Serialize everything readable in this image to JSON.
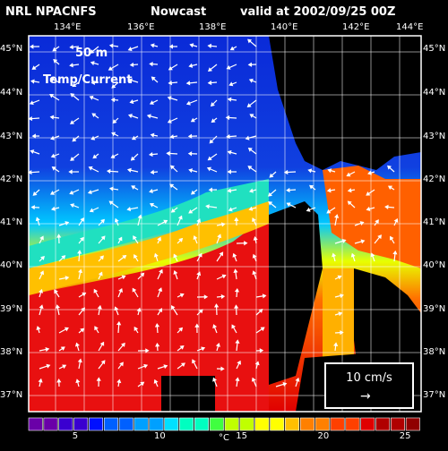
{
  "header": {
    "source": "NRL NPACNFS",
    "product": "Nowcast",
    "valid": "valid at 2002/09/25 00Z"
  },
  "overlay": {
    "depth": "50 m",
    "field": "Temp/Current"
  },
  "lon_labels": [
    "134°E",
    "136°E",
    "138°E",
    "140°E",
    "142°E",
    "144°E"
  ],
  "lat_labels": [
    "45°N",
    "44°N",
    "43°N",
    "42°N",
    "41°N",
    "40°N",
    "39°N",
    "38°N",
    "37°N"
  ],
  "vector_scale": {
    "label": "10 cm/s",
    "arrow": "→"
  },
  "colorbar": {
    "unit": "°C",
    "ticks": [
      "5",
      "10",
      "15",
      "20",
      "25"
    ],
    "range": [
      2,
      26
    ],
    "colors": [
      "#6a00a8",
      "#3a00d0",
      "#0010ff",
      "#0060ff",
      "#00a0ff",
      "#00e0ff",
      "#00ffc0",
      "#40ff40",
      "#c0ff00",
      "#ffff00",
      "#ffc000",
      "#ff8000",
      "#ff4000",
      "#e00000",
      "#b00000",
      "#900000"
    ]
  },
  "colors": {
    "land": "#000000",
    "grid": "#ffffff",
    "vectors": "#ffffff"
  }
}
